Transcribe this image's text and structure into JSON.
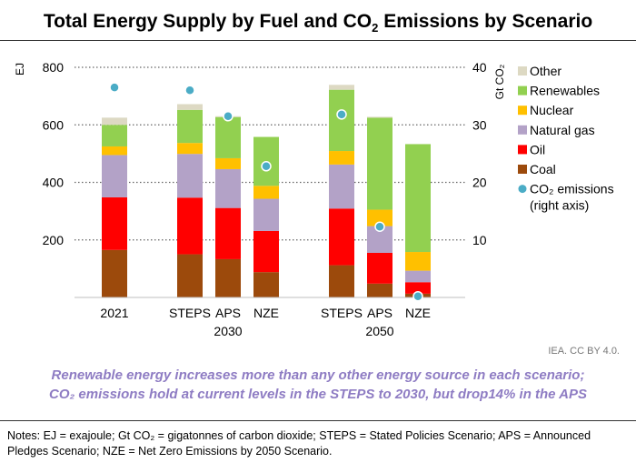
{
  "title": {
    "main": "Total Energy Supply by Fuel and CO",
    "sub": "2",
    "tail": " Emissions by Scenario"
  },
  "source": "IEA. CC BY 4.0.",
  "caption": {
    "line1": "Renewable energy increases more than any other energy source in each scenario;",
    "line2": "CO₂ emissions hold at current levels in the STEPS to 2030, but drop14% in the APS"
  },
  "notes": "Notes: EJ = exajoule; Gt CO₂ = gigatonnes of carbon dioxide; STEPS = Stated Policies Scenario; APS = Announced Pledges Scenario; NZE = Net Zero Emissions by 2050 Scenario.",
  "colors": {
    "Coal": "#9c4a0c",
    "Oil": "#ff0000",
    "Natural gas": "#b3a2c7",
    "Nuclear": "#ffc000",
    "Renewables": "#92d050",
    "Other": "#ddd9c3",
    "CO2": "#4bacc6"
  },
  "chart_data": {
    "type": "bar",
    "stacked": true,
    "ylabel": "EJ",
    "y2label": "Gt CO₂",
    "ylim": [
      0,
      800
    ],
    "y2lim": [
      0,
      40
    ],
    "yticks": [
      200,
      400,
      600,
      800
    ],
    "y2ticks": [
      10,
      20,
      30,
      40
    ],
    "grid": true,
    "legend_position": "right",
    "categories": [
      "2021",
      "STEPS",
      "APS",
      "NZE",
      "STEPS",
      "APS",
      "NZE"
    ],
    "group_labels": [
      {
        "label": "2030",
        "span": [
          1,
          3
        ]
      },
      {
        "label": "2050",
        "span": [
          4,
          6
        ]
      }
    ],
    "series": [
      {
        "name": "Coal",
        "values": [
          165,
          150,
          133,
          88,
          112,
          48,
          13
        ]
      },
      {
        "name": "Oil",
        "values": [
          183,
          197,
          178,
          143,
          197,
          107,
          40
        ]
      },
      {
        "name": "Natural gas",
        "values": [
          147,
          152,
          135,
          112,
          153,
          93,
          40
        ]
      },
      {
        "name": "Nuclear",
        "values": [
          30,
          38,
          38,
          45,
          47,
          57,
          65
        ]
      },
      {
        "name": "Renewables",
        "values": [
          75,
          115,
          143,
          170,
          213,
          320,
          375
        ]
      },
      {
        "name": "Other",
        "values": [
          25,
          20,
          3,
          0,
          17,
          3,
          0
        ]
      }
    ],
    "co2_series": {
      "name": "CO₂ emissions\n(right axis)",
      "values": [
        36.5,
        36,
        31.5,
        22.8,
        31.8,
        12.3,
        0.2
      ]
    },
    "legend": [
      {
        "label": "Other",
        "key": "Other",
        "kind": "square"
      },
      {
        "label": "Renewables",
        "key": "Renewables",
        "kind": "square"
      },
      {
        "label": "Nuclear",
        "key": "Nuclear",
        "kind": "square"
      },
      {
        "label": "Natural gas",
        "key": "Natural gas",
        "kind": "square"
      },
      {
        "label": "Oil",
        "key": "Oil",
        "kind": "square"
      },
      {
        "label": "Coal",
        "key": "Coal",
        "kind": "square"
      },
      {
        "label": "CO₂ emissions",
        "label2": "(right axis)",
        "key": "CO2",
        "kind": "circle"
      }
    ]
  }
}
